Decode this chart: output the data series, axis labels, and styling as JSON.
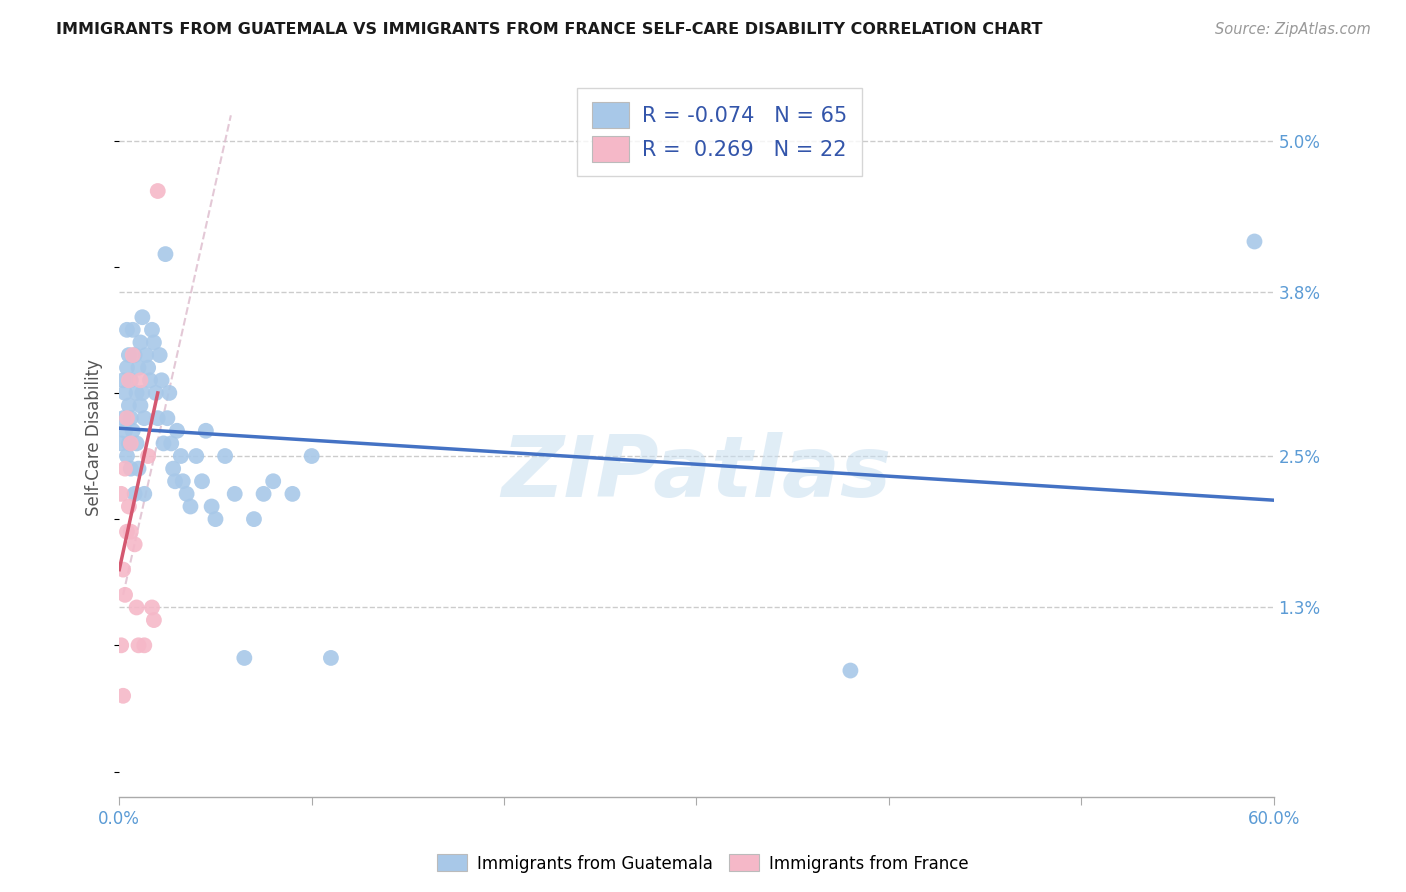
{
  "title": "IMMIGRANTS FROM GUATEMALA VS IMMIGRANTS FROM FRANCE SELF-CARE DISABILITY CORRELATION CHART",
  "source": "Source: ZipAtlas.com",
  "ylabel": "Self-Care Disability",
  "xlim": [
    0.0,
    0.6
  ],
  "ylim": [
    -0.002,
    0.055
  ],
  "legend_R_blue": "-0.074",
  "legend_N_blue": "65",
  "legend_R_pink": "0.269",
  "legend_N_pink": "22",
  "blue_color": "#a8c8e8",
  "pink_color": "#f5b8c8",
  "blue_line_color": "#4472c4",
  "pink_line_color": "#d45870",
  "watermark": "ZIPatlas",
  "ytick_vals": [
    0.013,
    0.025,
    0.038,
    0.05
  ],
  "ytick_labels": [
    "1.3%",
    "2.5%",
    "3.8%",
    "5.0%"
  ],
  "guatemala_x": [
    0.001,
    0.002,
    0.002,
    0.003,
    0.003,
    0.004,
    0.004,
    0.004,
    0.005,
    0.005,
    0.005,
    0.006,
    0.006,
    0.006,
    0.007,
    0.007,
    0.008,
    0.008,
    0.009,
    0.009,
    0.01,
    0.01,
    0.011,
    0.011,
    0.012,
    0.012,
    0.013,
    0.013,
    0.014,
    0.015,
    0.016,
    0.017,
    0.018,
    0.019,
    0.02,
    0.021,
    0.022,
    0.023,
    0.024,
    0.025,
    0.026,
    0.027,
    0.028,
    0.029,
    0.03,
    0.032,
    0.033,
    0.035,
    0.037,
    0.04,
    0.043,
    0.045,
    0.048,
    0.05,
    0.055,
    0.06,
    0.065,
    0.07,
    0.075,
    0.08,
    0.09,
    0.1,
    0.11,
    0.38,
    0.59
  ],
  "guatemala_y": [
    0.026,
    0.028,
    0.031,
    0.027,
    0.03,
    0.025,
    0.032,
    0.035,
    0.029,
    0.033,
    0.026,
    0.031,
    0.028,
    0.024,
    0.035,
    0.027,
    0.033,
    0.022,
    0.03,
    0.026,
    0.032,
    0.024,
    0.029,
    0.034,
    0.03,
    0.036,
    0.028,
    0.022,
    0.033,
    0.032,
    0.031,
    0.035,
    0.034,
    0.03,
    0.028,
    0.033,
    0.031,
    0.026,
    0.041,
    0.028,
    0.03,
    0.026,
    0.024,
    0.023,
    0.027,
    0.025,
    0.023,
    0.022,
    0.021,
    0.025,
    0.023,
    0.027,
    0.021,
    0.02,
    0.025,
    0.022,
    0.009,
    0.02,
    0.022,
    0.023,
    0.022,
    0.025,
    0.009,
    0.008,
    0.042
  ],
  "france_x": [
    0.001,
    0.001,
    0.002,
    0.002,
    0.003,
    0.003,
    0.004,
    0.004,
    0.005,
    0.005,
    0.006,
    0.006,
    0.007,
    0.008,
    0.009,
    0.01,
    0.011,
    0.013,
    0.015,
    0.017,
    0.018,
    0.02
  ],
  "france_y": [
    0.022,
    0.01,
    0.016,
    0.006,
    0.024,
    0.014,
    0.028,
    0.019,
    0.031,
    0.021,
    0.026,
    0.019,
    0.033,
    0.018,
    0.013,
    0.01,
    0.031,
    0.01,
    0.025,
    0.013,
    0.012,
    0.046
  ],
  "blue_line_x": [
    0.0,
    0.6
  ],
  "blue_line_y": [
    0.0272,
    0.0215
  ],
  "pink_line_x": [
    0.0,
    0.02
  ],
  "pink_line_y": [
    0.016,
    0.03
  ]
}
